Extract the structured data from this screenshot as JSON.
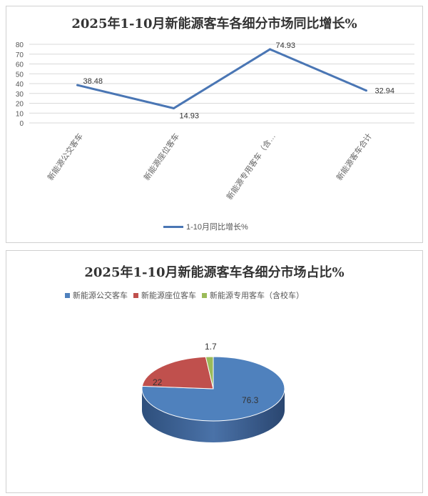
{
  "chart_data": [
    {
      "type": "line",
      "title": "2025年1-10月新能源客车各细分市场同比增长%",
      "categories": [
        "新能源公交客车",
        "新能源座位客车",
        "新能源专用客车（含…",
        "新能源客车合计"
      ],
      "series": [
        {
          "name": "1-10月同比增长%",
          "values": [
            38.48,
            14.93,
            74.93,
            32.94
          ],
          "color": "#4a76b4"
        }
      ],
      "data_labels": [
        "38.48",
        "14.93",
        "74.93",
        "32.94"
      ],
      "ylim": [
        0,
        80
      ],
      "yticks": [
        "0",
        "10",
        "20",
        "30",
        "40",
        "50",
        "60",
        "70",
        "80"
      ],
      "grid": true,
      "legend": "bottom"
    },
    {
      "type": "pie",
      "title": "2025年1-10月新能源客车各细分市场占比%",
      "style": "3d",
      "categories": [
        "新能源公交客车",
        "新能源座位客车",
        "新能源专用客车（含校车）"
      ],
      "values": [
        76.3,
        22,
        1.7
      ],
      "data_labels": [
        "76.3",
        "22",
        "1.7"
      ],
      "colors": [
        "#4f81bd",
        "#c0504d",
        "#9bbb59"
      ],
      "legend": "top"
    }
  ]
}
